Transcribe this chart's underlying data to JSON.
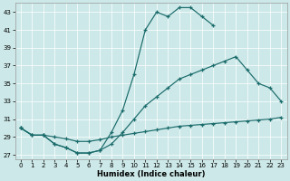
{
  "xlabel": "Humidex (Indice chaleur)",
  "bg_color": "#cde8e8",
  "line_color": "#1a6b6b",
  "xlim": [
    -0.5,
    23.5
  ],
  "ylim": [
    26.5,
    44
  ],
  "yticks": [
    27,
    29,
    31,
    33,
    35,
    37,
    39,
    41,
    43
  ],
  "xticks": [
    0,
    1,
    2,
    3,
    4,
    5,
    6,
    7,
    8,
    9,
    10,
    11,
    12,
    13,
    14,
    15,
    16,
    17,
    18,
    19,
    20,
    21,
    22,
    23
  ],
  "line1_x": [
    0,
    1,
    2,
    3,
    4,
    5,
    6,
    7,
    8,
    9,
    10,
    11,
    12,
    13,
    14,
    15,
    16,
    17,
    18,
    19,
    20,
    21,
    22,
    23
  ],
  "line1_y": [
    30.0,
    29.2,
    29.2,
    29.0,
    28.8,
    28.5,
    28.5,
    28.7,
    29.0,
    29.2,
    29.4,
    29.6,
    29.8,
    30.0,
    30.2,
    30.3,
    30.4,
    30.5,
    30.6,
    30.7,
    30.8,
    30.9,
    31.0,
    31.2
  ],
  "line2_x": [
    0,
    1,
    2,
    3,
    4,
    5,
    6,
    7,
    8,
    9,
    10,
    11,
    12,
    13,
    14,
    15,
    16,
    17,
    18,
    19,
    20,
    21,
    22,
    23
  ],
  "line2_y": [
    30.0,
    29.2,
    29.2,
    28.2,
    27.8,
    27.2,
    27.2,
    27.5,
    28.2,
    29.5,
    31.0,
    32.5,
    33.5,
    34.5,
    35.5,
    36.0,
    36.5,
    37.0,
    37.5,
    38.0,
    36.5,
    35.0,
    34.5,
    33.0
  ],
  "line3_x": [
    0,
    1,
    2,
    3,
    4,
    5,
    6,
    7,
    8,
    9,
    10,
    11,
    12,
    13,
    14,
    15,
    16,
    17
  ],
  "line3_y": [
    30.0,
    29.2,
    29.2,
    28.2,
    27.8,
    27.2,
    27.2,
    27.5,
    29.5,
    32.0,
    36.0,
    41.0,
    43.0,
    42.5,
    43.5,
    43.5,
    42.5,
    41.5
  ]
}
